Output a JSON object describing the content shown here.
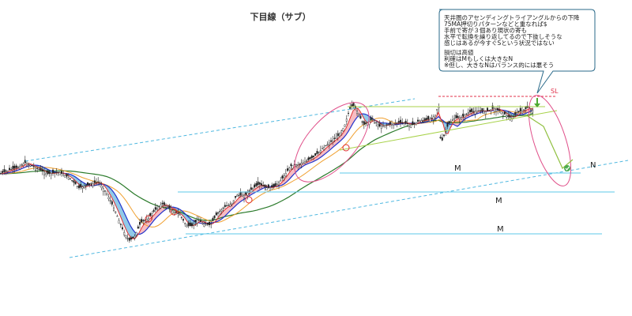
{
  "chart_data": {
    "type": "line",
    "title": "下目線（サブ）",
    "xlabel": "",
    "ylabel": "",
    "grid": false,
    "note": {
      "lines": [
        "天井圏のアセンディングトライアングルからの下降",
        "75MA押切りパターンなどと重なれば$",
        "手前で寄が３個あり現状の寄も",
        "水平で転換を繰り返してるので下抜しそうな",
        "感じはあるが今すぐSという状況ではない",
        "",
        "損切は高値",
        "利確はMもしくは大きなN",
        "※但し、大きなNはバランス的には悪そう"
      ]
    },
    "labels": {
      "sl": "SL",
      "m1": "M",
      "m2": "M",
      "m3": "M",
      "n": "N"
    },
    "colors": {
      "candle": "#222222",
      "ma_fast": "#e03030",
      "ma_mid": "#2233cc",
      "ma_slow": "#f0a030",
      "ma_long": "#2a7a2a",
      "cloud_up": "#f4a6ae",
      "cloud_down": "#6cb8e0",
      "channel": "#4fb8e0",
      "hline": "#5cc8e8",
      "triangle": "#a8d24a",
      "ellipse": "#e0508a",
      "sl_line": "#e0304a",
      "arrow": "#90c040",
      "note_border": "#2a6a8a"
    }
  }
}
